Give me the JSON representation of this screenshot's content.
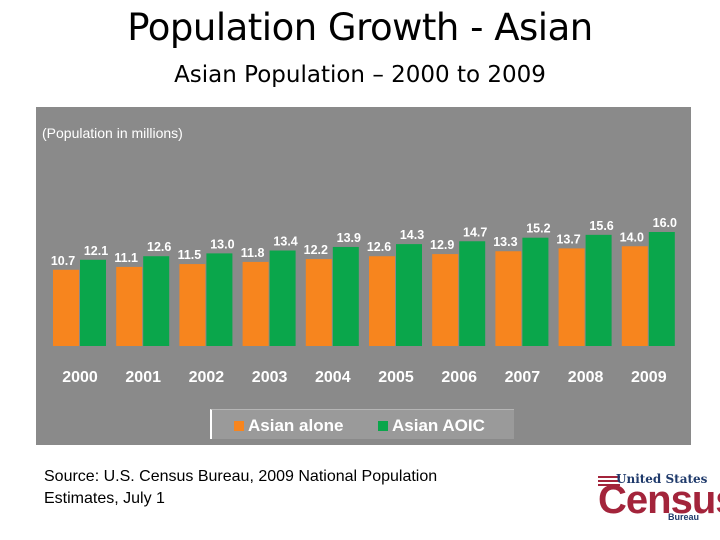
{
  "title": "Population Growth - Asian",
  "subtitle": "Asian Population – 2000 to 2009",
  "unit_note": "(Population in millions)",
  "source": "Source: U.S. Census Bureau, 2009 National Population Estimates, July 1",
  "logo": {
    "top": "United States",
    "main": "Census",
    "bottom": "Bureau"
  },
  "colors": {
    "panel": "#8a8a8a",
    "asian_alone": "#f7851e",
    "asian_aoic": "#0aa64b",
    "text": "#ffffff"
  },
  "chart_data": {
    "type": "bar",
    "categories": [
      "2000",
      "2001",
      "2002",
      "2003",
      "2004",
      "2005",
      "2006",
      "2007",
      "2008",
      "2009"
    ],
    "series": [
      {
        "name": "Asian alone",
        "color": "#f7851e",
        "values": [
          10.7,
          11.1,
          11.5,
          11.8,
          12.2,
          12.6,
          12.9,
          13.3,
          13.7,
          14.0
        ]
      },
      {
        "name": "Asian AOIC",
        "color": "#0aa64b",
        "values": [
          12.1,
          12.6,
          13.0,
          13.4,
          13.9,
          14.3,
          14.7,
          15.2,
          15.6,
          16.0
        ]
      }
    ],
    "value_labels": [
      [
        "10.7",
        "11.1",
        "11.5",
        "11.8",
        "12.2",
        "12.6",
        "12.9",
        "13.3",
        "13.7",
        "14.0"
      ],
      [
        "12.1",
        "12.6",
        "13.0",
        "13.4",
        "13.9",
        "14.3",
        "14.7",
        "15.2",
        "15.6",
        "16.0"
      ]
    ],
    "ylabel": "(Population in millions)",
    "legend": "bottom",
    "grid": false
  }
}
